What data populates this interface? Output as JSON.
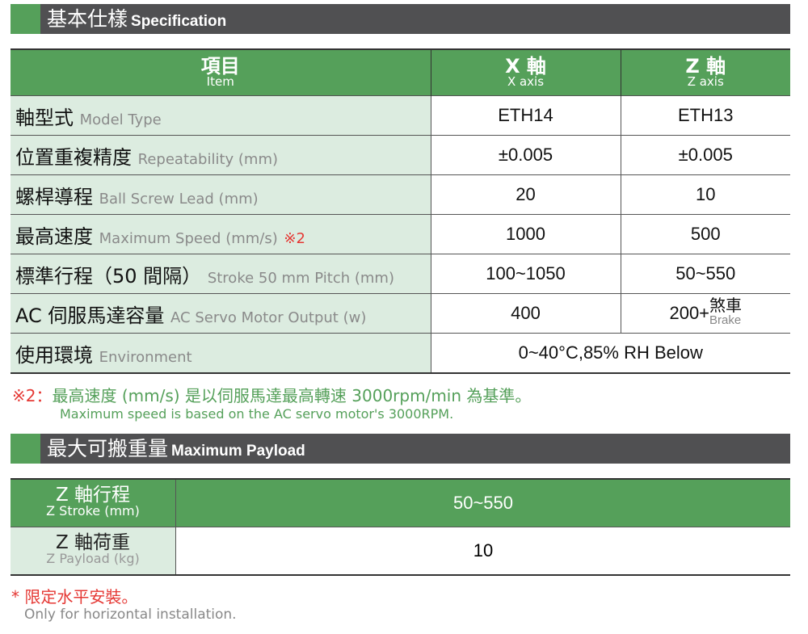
{
  "spec": {
    "title_zh": "基本仕樣",
    "title_en": "Specification",
    "header": {
      "item_zh": "項目",
      "item_en": "Item",
      "x_zh": "X 軸",
      "x_en": "X axis",
      "z_zh": "Z 軸",
      "z_en": "Z axis"
    },
    "rows": [
      {
        "zh": "軸型式",
        "en": "Model Type",
        "x": "ETH14",
        "z": "ETH13"
      },
      {
        "zh": "位置重複精度",
        "en": "Repeatability (mm)",
        "x": "±0.005",
        "z": "±0.005"
      },
      {
        "zh": "螺桿導程",
        "en": "Ball Screw Lead (mm)",
        "x": "20",
        "z": "10"
      },
      {
        "zh": "最高速度",
        "en": "Maximum Speed (mm/s)",
        "mark": "※2",
        "x": "1000",
        "z": "500"
      },
      {
        "zh": "標準行程（50 間隔）",
        "en": "Stroke 50 mm Pitch (mm)",
        "x": "100~1050",
        "z": "50~550"
      },
      {
        "zh": "AC 伺服馬達容量",
        "en": "AC Servo Motor Output (w)",
        "x": "400",
        "z": "200+",
        "z_brake_zh": "煞車",
        "z_brake_en": "Brake"
      },
      {
        "zh": "使用環境",
        "en": "Environment",
        "xz": "0~40°C,85% RH Below"
      }
    ],
    "note_mark": "※2：",
    "note_zh": "最高速度 (mm/s) 是以伺服馬達最高轉速 3000rpm/min 為基準。",
    "note_en": "Maximum speed is based on the AC servo motor's 3000RPM."
  },
  "payload": {
    "title_zh": "最大可搬重量",
    "title_en": "Maximum Payload",
    "rows": [
      {
        "zh": "Z 軸行程",
        "en": "Z Stroke (mm)",
        "value": "50~550"
      },
      {
        "zh": "Z 軸荷重",
        "en": "Z Payload (kg)",
        "value": "10"
      }
    ],
    "foot_zh": "* 限定水平安裝。",
    "foot_en": "Only for horizontal installation."
  },
  "colors": {
    "green": "#55a05a",
    "dark": "#505052",
    "light_green": "#dcece0",
    "red": "#e53935"
  }
}
